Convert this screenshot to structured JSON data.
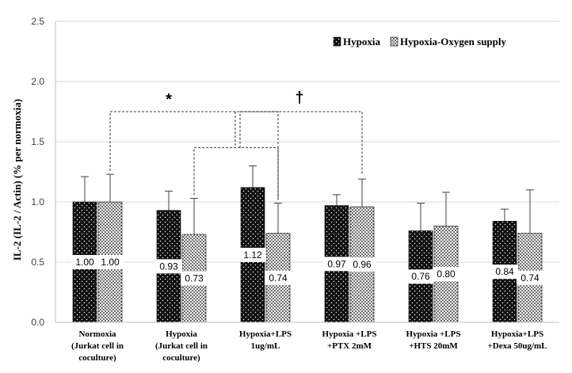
{
  "chart_data": {
    "type": "bar",
    "title": "",
    "xlabel": "",
    "ylabel": "IL-2 (IL-2 / Actin) (% per normoxia)",
    "ylim": [
      0,
      2.5
    ],
    "yticks": [
      "0.0",
      "0.5",
      "1.0",
      "1.5",
      "2.0",
      "2.5"
    ],
    "grid": true,
    "legend_position": "top-right",
    "categories": [
      [
        "Normoxia",
        "(Jurkat cell in",
        "coculture)"
      ],
      [
        "Hypoxia",
        "(Jurkat cell in",
        "coculture)"
      ],
      [
        "Hypoxia+LPS",
        "1ug/mL"
      ],
      [
        "Hypoxia +LPS",
        "+PTX  2mM"
      ],
      [
        "Hypoxia +LPS",
        "+HTS 20mM"
      ],
      [
        "Hypoxia+LPS",
        "+Dexa 50ug/mL"
      ]
    ],
    "series": [
      {
        "name": "Hypoxia",
        "values": [
          1.0,
          0.93,
          1.12,
          0.97,
          0.76,
          0.84
        ],
        "labels": [
          "1.00",
          "0.93",
          "1.12",
          "0.97",
          "0.76",
          "0.84"
        ],
        "errors": [
          0.21,
          0.16,
          0.18,
          0.09,
          0.23,
          0.1
        ]
      },
      {
        "name": "Hypoxia-Oxygen supply",
        "values": [
          1.0,
          0.73,
          0.74,
          0.96,
          0.8,
          0.74
        ],
        "labels": [
          "1.00",
          "0.73",
          "0.74",
          "0.96",
          "0.80",
          "0.74"
        ],
        "errors": [
          0.23,
          0.3,
          0.25,
          0.23,
          0.28,
          0.36
        ]
      }
    ],
    "annotations": [
      {
        "text": "*",
        "meaning": "significance bracket"
      },
      {
        "text": "†",
        "meaning": "significance bracket"
      }
    ],
    "colors": {
      "hypoxia_fill": "#111111",
      "oxygen_fill": "#e8e8e8",
      "grid": "#d9d9d9",
      "axis": "#bfbfbf"
    }
  }
}
